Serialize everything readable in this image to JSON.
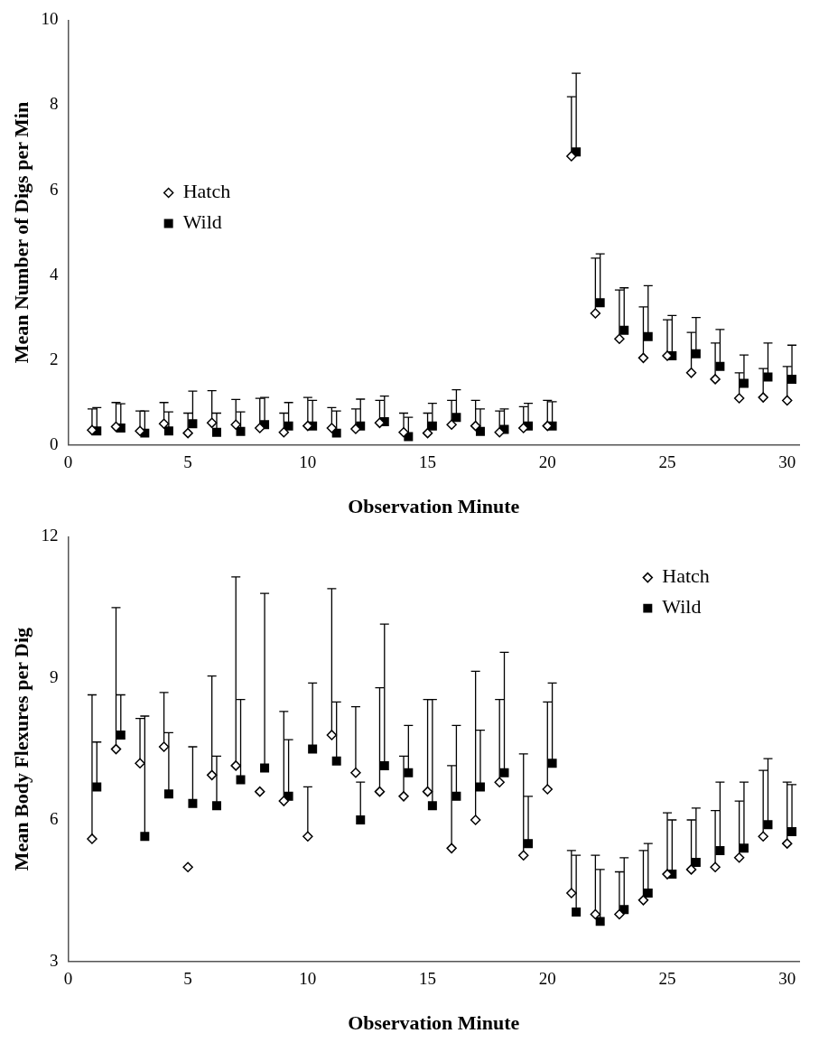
{
  "chart_data": [
    {
      "type": "scatter",
      "xlabel": "Observation Minute",
      "ylabel": "Mean Number of Digs per Min",
      "xlim": [
        0,
        30.5
      ],
      "xticks": [
        0,
        5,
        10,
        15,
        20,
        25,
        30
      ],
      "ylim": [
        0,
        10
      ],
      "yticks": [
        0,
        2,
        4,
        6,
        8,
        10
      ],
      "grid": false,
      "legend": "left",
      "x": [
        1,
        2,
        3,
        4,
        5,
        6,
        7,
        8,
        9,
        10,
        11,
        12,
        13,
        14,
        15,
        16,
        17,
        18,
        19,
        20,
        21,
        22,
        23,
        24,
        25,
        26,
        27,
        28,
        29,
        30
      ],
      "series": [
        {
          "name": "Hatch",
          "color": "#000000",
          "marker": "diamond",
          "values": [
            0.35,
            0.43,
            0.33,
            0.5,
            0.28,
            0.52,
            0.48,
            0.4,
            0.3,
            0.45,
            0.4,
            0.38,
            0.52,
            0.3,
            0.28,
            0.48,
            0.45,
            0.3,
            0.4,
            0.45,
            6.8,
            3.1,
            2.5,
            2.05,
            2.1,
            1.7,
            1.55,
            1.1,
            1.12,
            1.05
          ],
          "errors": [
            [
              0.35,
              0.85
            ],
            [
              0.43,
              1.0
            ],
            [
              0.33,
              0.8
            ],
            [
              0.5,
              1.0
            ],
            [
              0.28,
              0.75
            ],
            [
              0.52,
              1.28
            ],
            [
              0.48,
              1.07
            ],
            [
              0.4,
              1.1
            ],
            [
              0.3,
              0.75
            ],
            [
              0.45,
              1.12
            ],
            [
              0.4,
              0.88
            ],
            [
              0.38,
              0.85
            ],
            [
              0.52,
              1.05
            ],
            [
              0.3,
              0.75
            ],
            [
              0.28,
              0.75
            ],
            [
              0.48,
              1.05
            ],
            [
              0.45,
              1.05
            ],
            [
              0.3,
              0.8
            ],
            [
              0.4,
              0.9
            ],
            [
              0.45,
              1.05
            ],
            [
              6.8,
              8.2
            ],
            [
              3.1,
              4.4
            ],
            [
              2.5,
              3.65
            ],
            [
              2.05,
              3.25
            ],
            [
              2.1,
              2.95
            ],
            [
              1.7,
              2.65
            ],
            [
              1.55,
              2.4
            ],
            [
              1.1,
              1.7
            ],
            [
              1.12,
              1.8
            ],
            [
              1.05,
              1.85
            ]
          ]
        },
        {
          "name": "Wild",
          "color": "#000000",
          "marker": "square",
          "x": [
            1.2,
            2.2,
            3.2,
            4.2,
            5.2,
            6.2,
            7.2,
            8.2,
            9.2,
            10.2,
            11.2,
            12.2,
            13.2,
            14.2,
            15.2,
            16.2,
            17.2,
            18.2,
            19.2,
            20.2,
            21.2,
            22.2,
            23.2,
            24.2,
            25.2,
            26.2,
            27.2,
            28.2,
            29.2,
            30.2
          ],
          "values": [
            0.33,
            0.4,
            0.28,
            0.33,
            0.5,
            0.3,
            0.32,
            0.48,
            0.45,
            0.45,
            0.28,
            0.45,
            0.55,
            0.2,
            0.45,
            0.65,
            0.32,
            0.37,
            0.45,
            0.45,
            6.9,
            3.35,
            2.7,
            2.55,
            2.1,
            2.15,
            1.85,
            1.45,
            1.6,
            1.55
          ],
          "errors": [
            [
              0.33,
              0.88
            ],
            [
              0.4,
              0.97
            ],
            [
              0.28,
              0.8
            ],
            [
              0.33,
              0.78
            ],
            [
              0.5,
              1.27
            ],
            [
              0.3,
              0.75
            ],
            [
              0.32,
              0.78
            ],
            [
              0.48,
              1.12
            ],
            [
              0.45,
              1.0
            ],
            [
              0.45,
              1.05
            ],
            [
              0.28,
              0.8
            ],
            [
              0.45,
              1.08
            ],
            [
              0.55,
              1.15
            ],
            [
              0.2,
              0.65
            ],
            [
              0.45,
              0.98
            ],
            [
              0.65,
              1.3
            ],
            [
              0.32,
              0.85
            ],
            [
              0.37,
              0.85
            ],
            [
              0.45,
              0.98
            ],
            [
              0.45,
              1.02
            ],
            [
              6.9,
              8.75
            ],
            [
              3.35,
              4.5
            ],
            [
              2.7,
              3.7
            ],
            [
              2.55,
              3.75
            ],
            [
              2.1,
              3.05
            ],
            [
              2.15,
              3.0
            ],
            [
              1.85,
              2.72
            ],
            [
              1.45,
              2.12
            ],
            [
              1.6,
              2.4
            ],
            [
              1.55,
              2.35
            ]
          ]
        }
      ]
    },
    {
      "type": "scatter",
      "xlabel": "Observation Minute",
      "ylabel": "Mean Body Flexures per Dig",
      "xlim": [
        0,
        30.5
      ],
      "xticks": [
        0,
        5,
        10,
        15,
        20,
        25,
        30
      ],
      "ylim": [
        3,
        12
      ],
      "yticks": [
        3,
        6,
        9,
        12
      ],
      "grid": false,
      "legend": "top right",
      "x": [
        1,
        2,
        3,
        4,
        5,
        6,
        7,
        8,
        9,
        10,
        11,
        12,
        13,
        14,
        15,
        16,
        17,
        18,
        19,
        20,
        21,
        22,
        23,
        24,
        25,
        26,
        27,
        28,
        29,
        30
      ],
      "series": [
        {
          "name": "Hatch",
          "color": "#000000",
          "marker": "diamond",
          "values": [
            5.6,
            7.5,
            7.2,
            7.55,
            5.0,
            6.95,
            7.15,
            6.6,
            6.4,
            5.65,
            7.8,
            7.0,
            6.6,
            6.5,
            6.6,
            5.4,
            6.0,
            6.8,
            5.25,
            6.65,
            4.45,
            4.0,
            4.0,
            4.3,
            4.85,
            4.95,
            5.0,
            5.2,
            5.65,
            5.5
          ],
          "errors": [
            [
              5.6,
              8.65
            ],
            [
              7.5,
              10.5
            ],
            [
              7.2,
              8.15
            ],
            [
              7.55,
              8.7
            ],
            null,
            [
              6.95,
              9.05
            ],
            [
              7.15,
              11.15
            ],
            null,
            [
              6.4,
              8.3
            ],
            [
              5.65,
              6.7
            ],
            [
              7.8,
              10.9
            ],
            [
              7.0,
              8.4
            ],
            [
              6.6,
              8.8
            ],
            [
              6.5,
              7.35
            ],
            [
              6.6,
              8.55
            ],
            [
              5.4,
              7.15
            ],
            [
              6.0,
              9.15
            ],
            [
              6.8,
              8.55
            ],
            [
              5.25,
              7.4
            ],
            [
              6.65,
              8.5
            ],
            [
              4.45,
              5.35
            ],
            [
              4.0,
              5.25
            ],
            [
              4.0,
              4.9
            ],
            [
              4.3,
              5.35
            ],
            [
              4.85,
              6.15
            ],
            [
              4.95,
              6.0
            ],
            [
              5.0,
              6.2
            ],
            [
              5.2,
              6.4
            ],
            [
              5.65,
              7.05
            ],
            [
              5.5,
              6.8
            ]
          ]
        },
        {
          "name": "Wild",
          "color": "#000000",
          "marker": "square",
          "x": [
            1.2,
            2.2,
            3.2,
            4.2,
            5.2,
            6.2,
            7.2,
            8.2,
            9.2,
            10.2,
            11.2,
            12.2,
            13.2,
            14.2,
            15.2,
            16.2,
            17.2,
            18.2,
            19.2,
            20.2,
            21.2,
            22.2,
            23.2,
            24.2,
            25.2,
            26.2,
            27.2,
            28.2,
            29.2,
            30.2
          ],
          "values": [
            6.7,
            7.8,
            5.65,
            6.55,
            6.35,
            6.3,
            6.85,
            7.1,
            6.5,
            7.5,
            7.25,
            6.0,
            7.15,
            7.0,
            6.3,
            6.5,
            6.7,
            7.0,
            5.5,
            7.2,
            4.05,
            3.85,
            4.1,
            4.45,
            4.85,
            5.1,
            5.35,
            5.4,
            5.9,
            5.75
          ],
          "errors": [
            [
              6.7,
              7.65
            ],
            [
              7.8,
              8.65
            ],
            [
              5.65,
              8.2
            ],
            [
              6.55,
              7.85
            ],
            [
              6.35,
              7.55
            ],
            [
              6.3,
              7.35
            ],
            [
              6.85,
              8.55
            ],
            [
              7.1,
              10.8
            ],
            [
              6.5,
              7.7
            ],
            [
              7.5,
              8.9
            ],
            [
              7.25,
              8.5
            ],
            [
              6.0,
              6.8
            ],
            [
              7.15,
              10.15
            ],
            [
              7.0,
              8.0
            ],
            [
              6.3,
              8.55
            ],
            [
              6.5,
              8.0
            ],
            [
              6.7,
              7.9
            ],
            [
              7.0,
              9.55
            ],
            [
              5.5,
              6.5
            ],
            [
              7.2,
              8.9
            ],
            [
              4.05,
              5.25
            ],
            [
              3.85,
              4.95
            ],
            [
              4.1,
              5.2
            ],
            [
              4.45,
              5.5
            ],
            [
              4.85,
              6.0
            ],
            [
              5.1,
              6.25
            ],
            [
              5.35,
              6.8
            ],
            [
              5.4,
              6.8
            ],
            [
              5.9,
              7.3
            ],
            [
              5.75,
              6.75
            ]
          ]
        }
      ]
    }
  ]
}
